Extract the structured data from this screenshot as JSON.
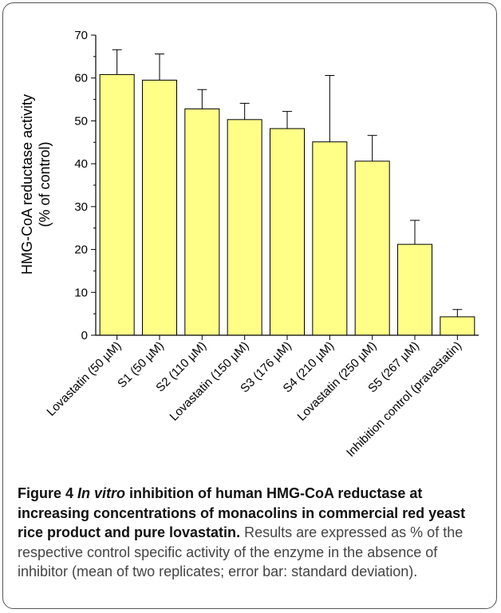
{
  "chart_data": {
    "type": "bar",
    "ylabel_line1": "HMG-CoA reductase activity",
    "ylabel_line2": "(% of control)",
    "ylim": [
      0,
      70
    ],
    "yticks": [
      0,
      10,
      20,
      30,
      40,
      50,
      60,
      70
    ],
    "categories": [
      "Lovastatin (50 µM)",
      "S1 (50 µM)",
      "S2 (110 µM)",
      "Lovastatin (150 µM)",
      "S3 (176 µM)",
      "S4 (210 µM)",
      "Lovastatin (250 µM)",
      "S5 (267 µM)",
      "Inhibition control (pravastatin)"
    ],
    "values": [
      60.8,
      59.5,
      52.8,
      50.3,
      48.2,
      45.1,
      40.6,
      21.2,
      4.3
    ],
    "errors": [
      5.8,
      6.1,
      4.5,
      3.8,
      4.0,
      15.5,
      6.0,
      5.6,
      1.7
    ],
    "bar_color": "#ffff88",
    "bar_stroke": "#000000"
  },
  "caption": {
    "label": "Figure 4",
    "title_italic": "In vitro",
    "title_rest": " inhibition of human HMG-CoA reductase at increasing concentrations of monacolins in commercial red yeast rice product and pure lovastatin",
    "period": ".",
    "body": " Results are expressed as % of the respective control specific activity of the enzyme in the absence of inhibitor (mean of two replicates; error bar: standard deviation)."
  }
}
